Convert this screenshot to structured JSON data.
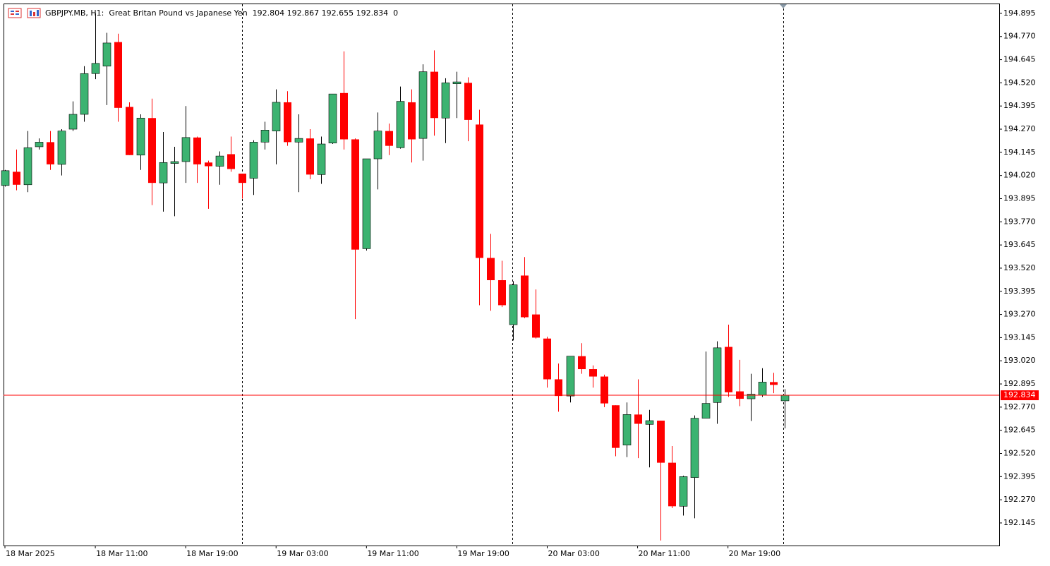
{
  "chart_data": {
    "type": "candlestick",
    "title": "GBPJPY.MB, H1:  Great Britan Pound vs Japanese Yen  192.804 192.867 192.655 192.834  0",
    "categories": [
      "18 Mar 2025",
      null,
      null,
      null,
      null,
      null,
      null,
      null,
      "18 Mar 11:00",
      null,
      null,
      null,
      null,
      null,
      null,
      null,
      "18 Mar 19:00",
      null,
      null,
      null,
      null,
      null,
      null,
      null,
      "19 Mar 03:00",
      null,
      null,
      null,
      null,
      null,
      null,
      null,
      "19 Mar 11:00",
      null,
      null,
      null,
      null,
      null,
      null,
      null,
      "19 Mar 19:00",
      null,
      null,
      null,
      null,
      null,
      null,
      null,
      "20 Mar 03:00",
      null,
      null,
      null,
      null,
      null,
      null,
      null,
      "20 Mar 11:00",
      null,
      null,
      null,
      null,
      null,
      null,
      null,
      "20 Mar 19:00",
      null,
      null,
      null,
      null,
      null
    ],
    "open": [
      193.966,
      194.04,
      193.97,
      194.175,
      194.2,
      194.08,
      194.27,
      194.35,
      194.57,
      194.61,
      194.74,
      194.39,
      194.13,
      194.33,
      193.98,
      194.085,
      194.095,
      194.225,
      194.09,
      194.07,
      194.135,
      194.03,
      194.005,
      194.2,
      194.26,
      194.415,
      194.2,
      194.22,
      194.025,
      194.195,
      194.465,
      194.215,
      193.625,
      194.11,
      194.26,
      194.17,
      194.415,
      194.22,
      194.58,
      194.33,
      194.515,
      194.52,
      194.295,
      193.575,
      193.455,
      193.215,
      193.48,
      193.27,
      193.14,
      192.92,
      192.83,
      193.045,
      192.975,
      192.935,
      192.78,
      192.565,
      192.73,
      192.677,
      192.697,
      192.47,
      192.235,
      192.39,
      192.71,
      192.795,
      193.095,
      192.855,
      192.815,
      192.835,
      192.905,
      192.804
    ],
    "high": [
      194.05,
      194.16,
      194.26,
      194.22,
      194.26,
      194.27,
      194.42,
      194.61,
      194.895,
      194.79,
      194.785,
      194.415,
      194.35,
      194.435,
      194.255,
      194.175,
      194.395,
      194.23,
      194.1,
      194.15,
      194.23,
      194.03,
      194.21,
      194.31,
      194.485,
      194.475,
      194.35,
      194.27,
      194.23,
      194.46,
      194.69,
      194.22,
      194.11,
      194.36,
      194.3,
      194.5,
      194.485,
      194.62,
      194.695,
      194.545,
      194.58,
      194.55,
      194.375,
      193.705,
      193.56,
      193.45,
      193.58,
      193.405,
      193.15,
      193.005,
      193.045,
      193.115,
      192.995,
      192.945,
      192.78,
      192.795,
      192.92,
      192.755,
      192.697,
      192.56,
      192.4,
      192.725,
      193.07,
      193.125,
      193.215,
      193.025,
      192.95,
      192.98,
      192.955,
      192.867
    ],
    "low": [
      193.96,
      193.94,
      193.93,
      194.16,
      194.05,
      194.02,
      194.26,
      194.31,
      194.54,
      194.4,
      194.31,
      194.13,
      194.05,
      193.86,
      193.825,
      193.8,
      193.98,
      193.98,
      193.84,
      193.97,
      194.04,
      193.895,
      193.915,
      194.16,
      194.08,
      194.18,
      193.93,
      194.0,
      193.975,
      194.19,
      194.16,
      193.245,
      193.615,
      193.945,
      194.13,
      194.165,
      194.09,
      194.1,
      194.235,
      194.195,
      194.33,
      194.205,
      193.32,
      193.29,
      193.31,
      193.13,
      193.25,
      193.14,
      192.875,
      192.745,
      192.795,
      192.95,
      192.875,
      192.77,
      192.505,
      192.5,
      192.495,
      192.445,
      192.05,
      192.225,
      192.185,
      192.17,
      192.71,
      192.68,
      192.825,
      192.775,
      192.695,
      192.825,
      192.845,
      192.655
    ],
    "close": [
      194.046,
      193.97,
      194.17,
      194.2,
      194.08,
      194.26,
      194.35,
      194.57,
      194.625,
      194.735,
      194.385,
      194.13,
      194.33,
      193.98,
      194.09,
      194.095,
      194.225,
      194.08,
      194.07,
      194.125,
      194.055,
      193.98,
      194.2,
      194.265,
      194.415,
      194.2,
      194.22,
      194.025,
      194.19,
      194.46,
      194.215,
      193.62,
      194.11,
      194.26,
      194.18,
      194.42,
      194.215,
      194.58,
      194.33,
      194.52,
      194.525,
      194.32,
      193.575,
      193.455,
      193.32,
      193.43,
      193.255,
      193.145,
      192.92,
      192.83,
      193.045,
      192.975,
      192.935,
      192.79,
      192.55,
      192.73,
      192.68,
      192.697,
      192.47,
      192.235,
      192.395,
      192.71,
      192.79,
      193.09,
      192.85,
      192.815,
      192.84,
      192.905,
      192.89,
      192.834
    ],
    "up_color": "#3cb371",
    "down_color": "#ff0000",
    "current_price": 192.834,
    "current_price_color": "#ff0000",
    "ylim": [
      192.023,
      194.948
    ],
    "yticks": [
      194.895,
      {
        "value": 194.77,
        "label": "194.770"
      },
      194.645,
      {
        "value": 194.52,
        "label": "194.520"
      },
      194.395,
      {
        "value": 194.27,
        "label": "194.270"
      },
      194.145,
      {
        "value": 194.02,
        "label": "194.020"
      },
      193.895,
      {
        "value": 193.77,
        "label": "193.770"
      },
      193.645,
      {
        "value": 193.52,
        "label": "193.520"
      },
      193.395,
      {
        "value": 193.27,
        "label": "193.270"
      },
      193.145,
      {
        "value": 193.02,
        "label": "193.020"
      },
      192.895,
      {
        "value": 192.77,
        "label": "192.770"
      },
      192.645,
      {
        "value": 192.52,
        "label": "192.520"
      },
      192.395,
      {
        "value": 192.27,
        "label": "192.270"
      },
      192.145
    ],
    "grid": false
  }
}
